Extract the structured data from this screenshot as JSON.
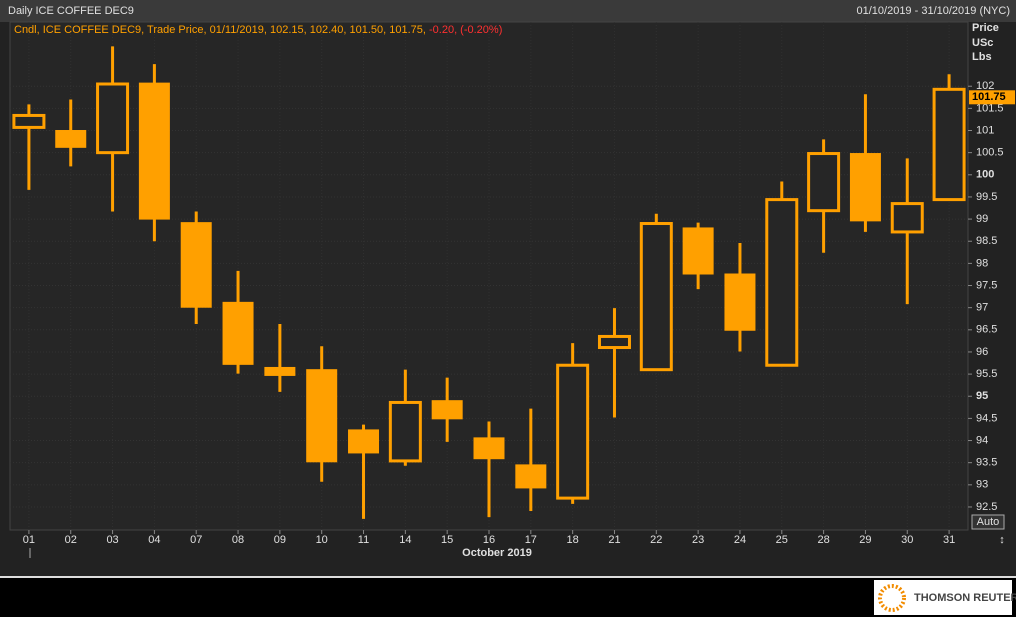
{
  "header": {
    "title": "Daily ICE COFFEE DEC9",
    "range": "01/10/2019 - 31/10/2019 (NYC)"
  },
  "legend": {
    "text": "Cndl, ICE COFFEE DEC9, Trade Price, 01/11/2019, 102.15, 102.40, 101.50, 101.75,",
    "change": "-0.20, (-0.20%)"
  },
  "chart_data": {
    "type": "candlestick",
    "color": "#ffa000",
    "grid": true,
    "xlabel": "October 2019",
    "ylabel": [
      "Price",
      "USc",
      "Lbs"
    ],
    "categories": [
      "01",
      "02",
      "03",
      "04",
      "07",
      "08",
      "09",
      "10",
      "11",
      "14",
      "15",
      "16",
      "17",
      "18",
      "21",
      "22",
      "23",
      "24",
      "25",
      "28",
      "29",
      "30",
      "31"
    ],
    "open": [
      101.07,
      101.0,
      100.5,
      102.07,
      98.92,
      97.12,
      95.65,
      95.6,
      94.24,
      93.54,
      94.9,
      94.06,
      93.45,
      92.7,
      96.1,
      95.6,
      98.8,
      97.76,
      95.7,
      99.19,
      100.48,
      98.71,
      99.44
    ],
    "high": [
      101.59,
      101.7,
      102.9,
      102.5,
      99.17,
      97.83,
      96.63,
      96.13,
      94.36,
      95.6,
      95.42,
      94.43,
      94.72,
      96.2,
      96.99,
      99.12,
      98.92,
      98.46,
      99.85,
      100.8,
      101.82,
      100.37,
      102.27
    ],
    "low": [
      99.66,
      100.19,
      99.17,
      98.5,
      96.63,
      95.51,
      95.1,
      93.07,
      92.23,
      93.43,
      93.97,
      92.27,
      92.41,
      92.57,
      94.52,
      95.6,
      97.42,
      96.01,
      95.7,
      98.24,
      98.71,
      97.08,
      99.44
    ],
    "close": [
      101.34,
      100.62,
      102.05,
      99.0,
      97.01,
      95.72,
      95.47,
      93.52,
      93.72,
      94.86,
      94.49,
      93.59,
      92.93,
      95.7,
      96.35,
      98.9,
      97.76,
      96.49,
      99.44,
      100.48,
      98.96,
      99.35,
      101.93
    ],
    "ylim": [
      91.98,
      103.45
    ],
    "yticks": [
      92.5,
      93,
      93.5,
      94,
      94.5,
      95,
      95.5,
      96,
      96.5,
      97,
      97.5,
      98,
      98.5,
      99,
      99.5,
      100,
      100.5,
      101,
      101.5,
      102
    ],
    "last_price": 101.75,
    "auto_button": "Auto"
  },
  "footer": {
    "logo": "THOMSON REUTERS"
  }
}
